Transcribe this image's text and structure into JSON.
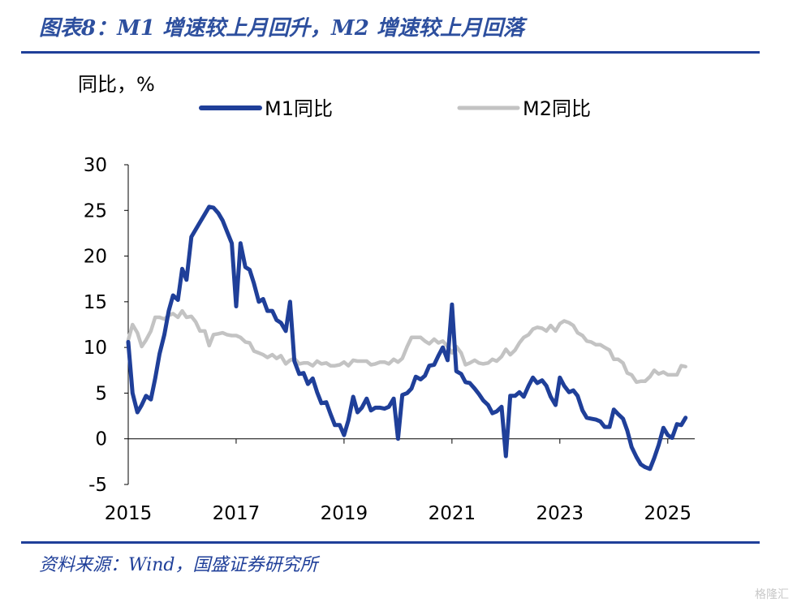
{
  "title": "图表8：M1 增速较上月回升，M2 增速较上月回落",
  "source": "资料来源：Wind，国盛证券研究所",
  "watermark": "格隆汇",
  "colors": {
    "accent": "#1f3f99",
    "m1": "#1f3f99",
    "m2": "#c3c3c3"
  },
  "chart_data": {
    "type": "line",
    "ylabel": "同比，%",
    "ylim": [
      -5,
      30
    ],
    "yticks": [
      "-5",
      "0",
      "5",
      "10",
      "15",
      "20",
      "25",
      "30"
    ],
    "xlim": [
      2015.0,
      2025.5
    ],
    "xticks": [
      "2015",
      "2017",
      "2019",
      "2021",
      "2023",
      "2025"
    ],
    "legend_position": "top",
    "grid": false,
    "series": [
      {
        "name": "M1同比",
        "color": "#1f3f99",
        "points": [
          [
            2015.0,
            10.6
          ],
          [
            2015.08,
            5.0
          ],
          [
            2015.17,
            2.9
          ],
          [
            2015.25,
            3.7
          ],
          [
            2015.33,
            4.7
          ],
          [
            2015.42,
            4.3
          ],
          [
            2015.5,
            6.6
          ],
          [
            2015.58,
            9.3
          ],
          [
            2015.67,
            11.4
          ],
          [
            2015.75,
            14.0
          ],
          [
            2015.83,
            15.7
          ],
          [
            2015.92,
            15.2
          ],
          [
            2016.0,
            18.6
          ],
          [
            2016.08,
            17.4
          ],
          [
            2016.17,
            22.1
          ],
          [
            2016.25,
            22.9
          ],
          [
            2016.33,
            23.7
          ],
          [
            2016.42,
            24.6
          ],
          [
            2016.5,
            25.4
          ],
          [
            2016.58,
            25.3
          ],
          [
            2016.67,
            24.7
          ],
          [
            2016.75,
            23.9
          ],
          [
            2016.83,
            22.7
          ],
          [
            2016.92,
            21.4
          ],
          [
            2017.0,
            14.5
          ],
          [
            2017.08,
            21.4
          ],
          [
            2017.17,
            18.8
          ],
          [
            2017.25,
            18.5
          ],
          [
            2017.33,
            17.0
          ],
          [
            2017.42,
            15.0
          ],
          [
            2017.5,
            15.3
          ],
          [
            2017.58,
            14.0
          ],
          [
            2017.67,
            14.0
          ],
          [
            2017.75,
            13.0
          ],
          [
            2017.83,
            12.7
          ],
          [
            2017.92,
            11.8
          ],
          [
            2018.0,
            15.0
          ],
          [
            2018.08,
            8.5
          ],
          [
            2018.17,
            7.1
          ],
          [
            2018.25,
            7.2
          ],
          [
            2018.33,
            6.0
          ],
          [
            2018.42,
            6.6
          ],
          [
            2018.5,
            5.1
          ],
          [
            2018.58,
            3.9
          ],
          [
            2018.67,
            4.0
          ],
          [
            2018.75,
            2.7
          ],
          [
            2018.83,
            1.5
          ],
          [
            2018.92,
            1.5
          ],
          [
            2019.0,
            0.4
          ],
          [
            2019.08,
            2.0
          ],
          [
            2019.17,
            4.6
          ],
          [
            2019.25,
            2.9
          ],
          [
            2019.33,
            3.4
          ],
          [
            2019.42,
            4.4
          ],
          [
            2019.5,
            3.1
          ],
          [
            2019.58,
            3.4
          ],
          [
            2019.67,
            3.4
          ],
          [
            2019.75,
            3.3
          ],
          [
            2019.83,
            3.5
          ],
          [
            2019.92,
            4.4
          ],
          [
            2020.0,
            0.0
          ],
          [
            2020.08,
            4.8
          ],
          [
            2020.17,
            5.0
          ],
          [
            2020.25,
            5.5
          ],
          [
            2020.33,
            6.8
          ],
          [
            2020.42,
            6.5
          ],
          [
            2020.5,
            6.9
          ],
          [
            2020.58,
            8.0
          ],
          [
            2020.67,
            8.1
          ],
          [
            2020.75,
            9.1
          ],
          [
            2020.83,
            10.0
          ],
          [
            2020.92,
            8.6
          ],
          [
            2021.0,
            14.7
          ],
          [
            2021.08,
            7.4
          ],
          [
            2021.17,
            7.1
          ],
          [
            2021.25,
            6.2
          ],
          [
            2021.33,
            6.1
          ],
          [
            2021.42,
            5.5
          ],
          [
            2021.5,
            4.9
          ],
          [
            2021.58,
            4.2
          ],
          [
            2021.67,
            3.7
          ],
          [
            2021.75,
            2.8
          ],
          [
            2021.83,
            3.0
          ],
          [
            2021.92,
            3.5
          ],
          [
            2022.0,
            -1.9
          ],
          [
            2022.08,
            4.7
          ],
          [
            2022.17,
            4.7
          ],
          [
            2022.25,
            5.1
          ],
          [
            2022.33,
            4.6
          ],
          [
            2022.42,
            5.8
          ],
          [
            2022.5,
            6.7
          ],
          [
            2022.58,
            6.1
          ],
          [
            2022.67,
            6.4
          ],
          [
            2022.75,
            5.8
          ],
          [
            2022.83,
            4.6
          ],
          [
            2022.92,
            3.7
          ],
          [
            2023.0,
            6.7
          ],
          [
            2023.08,
            5.8
          ],
          [
            2023.17,
            5.1
          ],
          [
            2023.25,
            5.3
          ],
          [
            2023.33,
            4.7
          ],
          [
            2023.42,
            3.1
          ],
          [
            2023.5,
            2.3
          ],
          [
            2023.58,
            2.2
          ],
          [
            2023.67,
            2.1
          ],
          [
            2023.75,
            1.9
          ],
          [
            2023.83,
            1.3
          ],
          [
            2023.92,
            1.3
          ],
          [
            2024.0,
            3.2
          ],
          [
            2024.08,
            2.7
          ],
          [
            2024.17,
            2.2
          ],
          [
            2024.25,
            0.9
          ],
          [
            2024.33,
            -0.9
          ],
          [
            2024.42,
            -2.0
          ],
          [
            2024.5,
            -2.8
          ],
          [
            2024.58,
            -3.1
          ],
          [
            2024.67,
            -3.3
          ],
          [
            2024.75,
            -2.1
          ],
          [
            2024.83,
            -0.7
          ],
          [
            2024.92,
            1.2
          ],
          [
            2025.0,
            0.4
          ],
          [
            2025.08,
            0.1
          ],
          [
            2025.17,
            1.6
          ],
          [
            2025.25,
            1.5
          ],
          [
            2025.33,
            2.3
          ]
        ]
      },
      {
        "name": "M2同比",
        "color": "#c3c3c3",
        "points": [
          [
            2015.0,
            10.8
          ],
          [
            2015.08,
            12.5
          ],
          [
            2015.17,
            11.6
          ],
          [
            2015.25,
            10.1
          ],
          [
            2015.33,
            10.8
          ],
          [
            2015.42,
            11.8
          ],
          [
            2015.5,
            13.3
          ],
          [
            2015.58,
            13.3
          ],
          [
            2015.67,
            13.1
          ],
          [
            2015.75,
            13.5
          ],
          [
            2015.83,
            13.7
          ],
          [
            2015.92,
            13.3
          ],
          [
            2016.0,
            14.0
          ],
          [
            2016.08,
            13.3
          ],
          [
            2016.17,
            13.4
          ],
          [
            2016.25,
            12.8
          ],
          [
            2016.33,
            11.8
          ],
          [
            2016.42,
            11.8
          ],
          [
            2016.5,
            10.2
          ],
          [
            2016.58,
            11.4
          ],
          [
            2016.67,
            11.5
          ],
          [
            2016.75,
            11.6
          ],
          [
            2016.83,
            11.4
          ],
          [
            2016.92,
            11.3
          ],
          [
            2017.0,
            11.3
          ],
          [
            2017.08,
            11.1
          ],
          [
            2017.17,
            10.6
          ],
          [
            2017.25,
            10.5
          ],
          [
            2017.33,
            9.6
          ],
          [
            2017.42,
            9.4
          ],
          [
            2017.5,
            9.2
          ],
          [
            2017.58,
            8.9
          ],
          [
            2017.67,
            9.2
          ],
          [
            2017.75,
            8.8
          ],
          [
            2017.83,
            9.1
          ],
          [
            2017.92,
            8.2
          ],
          [
            2018.0,
            8.6
          ],
          [
            2018.08,
            8.8
          ],
          [
            2018.17,
            8.2
          ],
          [
            2018.25,
            8.3
          ],
          [
            2018.33,
            8.3
          ],
          [
            2018.42,
            8.0
          ],
          [
            2018.5,
            8.5
          ],
          [
            2018.58,
            8.2
          ],
          [
            2018.67,
            8.3
          ],
          [
            2018.75,
            8.0
          ],
          [
            2018.83,
            8.0
          ],
          [
            2018.92,
            8.1
          ],
          [
            2019.0,
            8.4
          ],
          [
            2019.08,
            8.0
          ],
          [
            2019.17,
            8.6
          ],
          [
            2019.25,
            8.5
          ],
          [
            2019.33,
            8.5
          ],
          [
            2019.42,
            8.5
          ],
          [
            2019.5,
            8.1
          ],
          [
            2019.58,
            8.2
          ],
          [
            2019.67,
            8.4
          ],
          [
            2019.75,
            8.4
          ],
          [
            2019.83,
            8.2
          ],
          [
            2019.92,
            8.7
          ],
          [
            2020.0,
            8.4
          ],
          [
            2020.08,
            8.8
          ],
          [
            2020.17,
            10.1
          ],
          [
            2020.25,
            11.1
          ],
          [
            2020.33,
            11.1
          ],
          [
            2020.42,
            11.1
          ],
          [
            2020.5,
            10.7
          ],
          [
            2020.58,
            10.4
          ],
          [
            2020.67,
            10.9
          ],
          [
            2020.75,
            10.5
          ],
          [
            2020.83,
            10.7
          ],
          [
            2020.92,
            10.1
          ],
          [
            2021.0,
            9.4
          ],
          [
            2021.08,
            10.1
          ],
          [
            2021.17,
            9.4
          ],
          [
            2021.25,
            8.1
          ],
          [
            2021.33,
            8.3
          ],
          [
            2021.42,
            8.6
          ],
          [
            2021.5,
            8.3
          ],
          [
            2021.58,
            8.2
          ],
          [
            2021.67,
            8.3
          ],
          [
            2021.75,
            8.7
          ],
          [
            2021.83,
            8.5
          ],
          [
            2021.92,
            9.0
          ],
          [
            2022.0,
            9.8
          ],
          [
            2022.08,
            9.2
          ],
          [
            2022.17,
            9.7
          ],
          [
            2022.25,
            10.5
          ],
          [
            2022.33,
            11.1
          ],
          [
            2022.42,
            11.4
          ],
          [
            2022.5,
            12.0
          ],
          [
            2022.58,
            12.2
          ],
          [
            2022.67,
            12.1
          ],
          [
            2022.75,
            11.8
          ],
          [
            2022.83,
            12.4
          ],
          [
            2022.92,
            11.8
          ],
          [
            2023.0,
            12.6
          ],
          [
            2023.08,
            12.9
          ],
          [
            2023.17,
            12.7
          ],
          [
            2023.25,
            12.4
          ],
          [
            2023.33,
            11.6
          ],
          [
            2023.42,
            11.3
          ],
          [
            2023.5,
            10.7
          ],
          [
            2023.58,
            10.6
          ],
          [
            2023.67,
            10.3
          ],
          [
            2023.75,
            10.3
          ],
          [
            2023.83,
            10.0
          ],
          [
            2023.92,
            9.7
          ],
          [
            2024.0,
            8.7
          ],
          [
            2024.08,
            8.7
          ],
          [
            2024.17,
            8.3
          ],
          [
            2024.25,
            7.2
          ],
          [
            2024.33,
            7.0
          ],
          [
            2024.42,
            6.2
          ],
          [
            2024.5,
            6.3
          ],
          [
            2024.58,
            6.3
          ],
          [
            2024.67,
            6.8
          ],
          [
            2024.75,
            7.5
          ],
          [
            2024.83,
            7.1
          ],
          [
            2024.92,
            7.3
          ],
          [
            2025.0,
            7.0
          ],
          [
            2025.08,
            7.0
          ],
          [
            2025.17,
            7.0
          ],
          [
            2025.25,
            8.0
          ],
          [
            2025.33,
            7.9
          ]
        ]
      }
    ]
  }
}
